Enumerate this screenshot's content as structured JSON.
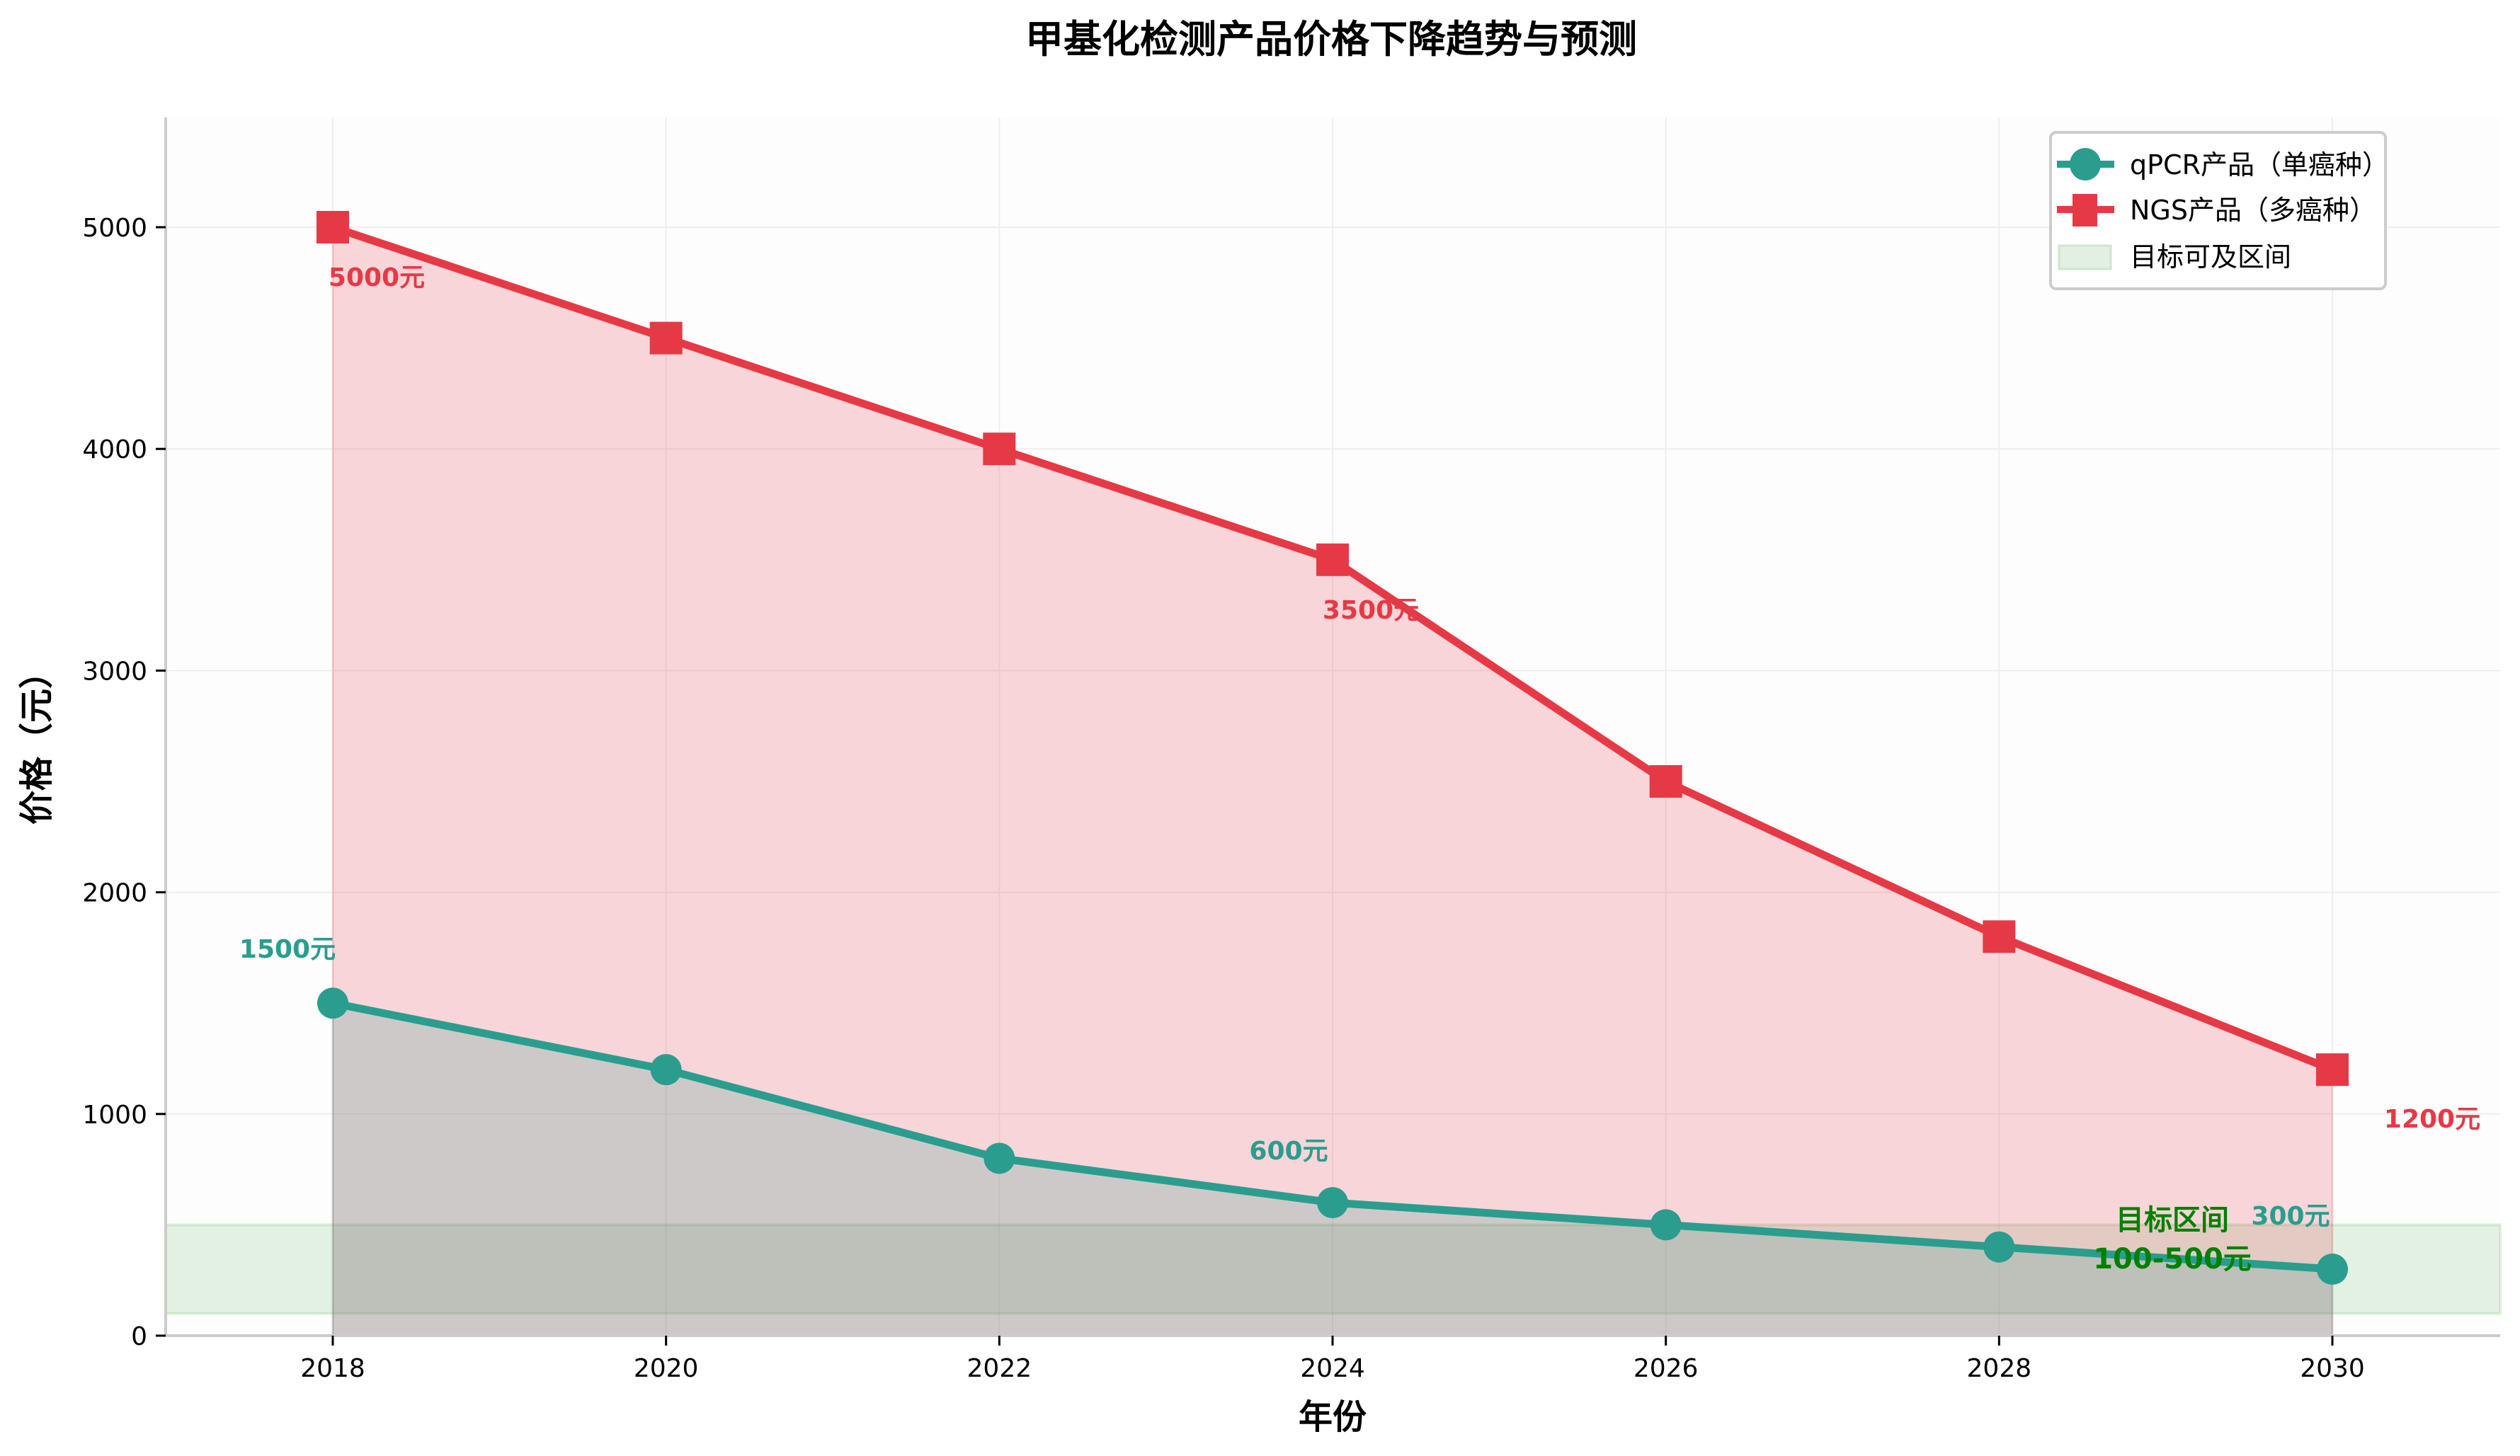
{
  "chart_data": {
    "type": "line",
    "title": "甲基化检测产品价格下降趋势与预测",
    "xlabel": "年份",
    "ylabel": "价格（元）",
    "x": [
      2018,
      2020,
      2022,
      2024,
      2026,
      2028,
      2030
    ],
    "xlim": [
      2017,
      2031
    ],
    "ylim": [
      0,
      5500
    ],
    "xticks": [
      "2018",
      "2020",
      "2022",
      "2024",
      "2026",
      "2028",
      "2030"
    ],
    "yticks": [
      "0",
      "1000",
      "2000",
      "3000",
      "4000",
      "5000"
    ],
    "grid": true,
    "legend_position": "upper right",
    "series": [
      {
        "name": "qPCR产品（单癌种）",
        "color": "#2a9d8f",
        "marker": "circle",
        "values": [
          1500,
          1200,
          800,
          600,
          500,
          400,
          300
        ],
        "fill": true
      },
      {
        "name": "NGS产品（多癌种）",
        "color": "#e63946",
        "marker": "square",
        "values": [
          5000,
          4500,
          4000,
          3500,
          2500,
          1800,
          1200
        ],
        "fill": true
      }
    ],
    "bands": [
      {
        "name": "目标可及区间",
        "y0": 100,
        "y1": 500,
        "color": "#2ca02c"
      }
    ],
    "annotations": [
      {
        "text": "5000元",
        "x": 2018,
        "y": 5000,
        "color": "#e63946"
      },
      {
        "text": "3500元",
        "x": 2024,
        "y": 3500,
        "color": "#e63946"
      },
      {
        "text": "1200元",
        "x": 2030,
        "y": 1200,
        "color": "#e63946"
      },
      {
        "text": "1500元",
        "x": 2018,
        "y": 1500,
        "color": "#2a9d8f"
      },
      {
        "text": "600元",
        "x": 2024,
        "y": 600,
        "color": "#2a9d8f"
      },
      {
        "text": "300元",
        "x": 2030,
        "y": 300,
        "color": "#2a9d8f"
      },
      {
        "text": "目标区间",
        "x": 2029,
        "y": 500,
        "color": "#008000"
      },
      {
        "text": "100-500元",
        "x": 2029,
        "y": 350,
        "color": "#008000"
      }
    ]
  }
}
